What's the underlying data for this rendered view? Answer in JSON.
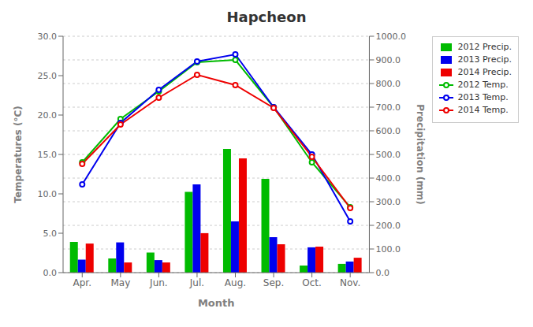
{
  "chart_data": {
    "type": "bar",
    "title": "Hapcheon",
    "x_label": "Month",
    "y_label": "Temperatures (°C)",
    "y2_label": "Precipitation (mm)",
    "categories": [
      "Apr.",
      "May",
      "Jun.",
      "Jul.",
      "Aug.",
      "Sep.",
      "Oct.",
      "Nov."
    ],
    "series": [
      {
        "name": "2012 Precip.",
        "type": "bar",
        "axis": "y2",
        "color": "#00bb00",
        "values": [
          130.0,
          60.0,
          85.0,
          342.0,
          523.0,
          397.0,
          30.0,
          37.0
        ]
      },
      {
        "name": "2013 Precip.",
        "type": "bar",
        "axis": "y2",
        "color": "#0000ee",
        "values": [
          55.0,
          128.0,
          53.0,
          373.0,
          217.0,
          150.0,
          107.0,
          47.0
        ]
      },
      {
        "name": "2014 Precip.",
        "type": "bar",
        "axis": "y2",
        "color": "#ee0000",
        "values": [
          123.0,
          43.0,
          43.0,
          167.0,
          483.0,
          120.0,
          110.0,
          63.0
        ]
      },
      {
        "name": "2012 Temp.",
        "type": "line",
        "axis": "y",
        "color": "#00bb00",
        "marker": "circle",
        "values": [
          14.0,
          19.5,
          23.0,
          26.7,
          27.0,
          21.0,
          14.0,
          8.3
        ]
      },
      {
        "name": "2013 Temp.",
        "type": "line",
        "axis": "y",
        "color": "#0000ee",
        "marker": "circle",
        "values": [
          11.2,
          19.0,
          23.2,
          26.8,
          27.7,
          21.0,
          15.0,
          6.5
        ]
      },
      {
        "name": "2014 Temp.",
        "type": "line",
        "axis": "y",
        "color": "#ee0000",
        "marker": "circle",
        "values": [
          13.8,
          18.8,
          22.2,
          25.1,
          23.8,
          20.9,
          14.7,
          8.2
        ]
      }
    ],
    "ylim": [
      0.0,
      30.0
    ],
    "yticks": [
      {
        "value": 0,
        "label": "0.0"
      },
      {
        "value": 5,
        "label": "5.0"
      },
      {
        "value": 10,
        "label": "10.0"
      },
      {
        "value": 15,
        "label": "15.0"
      },
      {
        "value": 20,
        "label": "20.0"
      },
      {
        "value": 25,
        "label": "25.0"
      },
      {
        "value": 30,
        "label": "30.0"
      }
    ],
    "y2lim": [
      0.0,
      1000.0
    ],
    "y2ticks": [
      {
        "value": 0,
        "label": "0.0"
      },
      {
        "value": 100,
        "label": "100.0"
      },
      {
        "value": 200,
        "label": "200.0"
      },
      {
        "value": 300,
        "label": "300.0"
      },
      {
        "value": 400,
        "label": "400.0"
      },
      {
        "value": 500,
        "label": "500.0"
      },
      {
        "value": 600,
        "label": "600.0"
      },
      {
        "value": 700,
        "label": "700.0"
      },
      {
        "value": 800,
        "label": "800.0"
      },
      {
        "value": 900,
        "label": "900.0"
      },
      {
        "value": 1000,
        "label": "1000.0"
      }
    ],
    "grid": true,
    "legend": "upper right"
  }
}
